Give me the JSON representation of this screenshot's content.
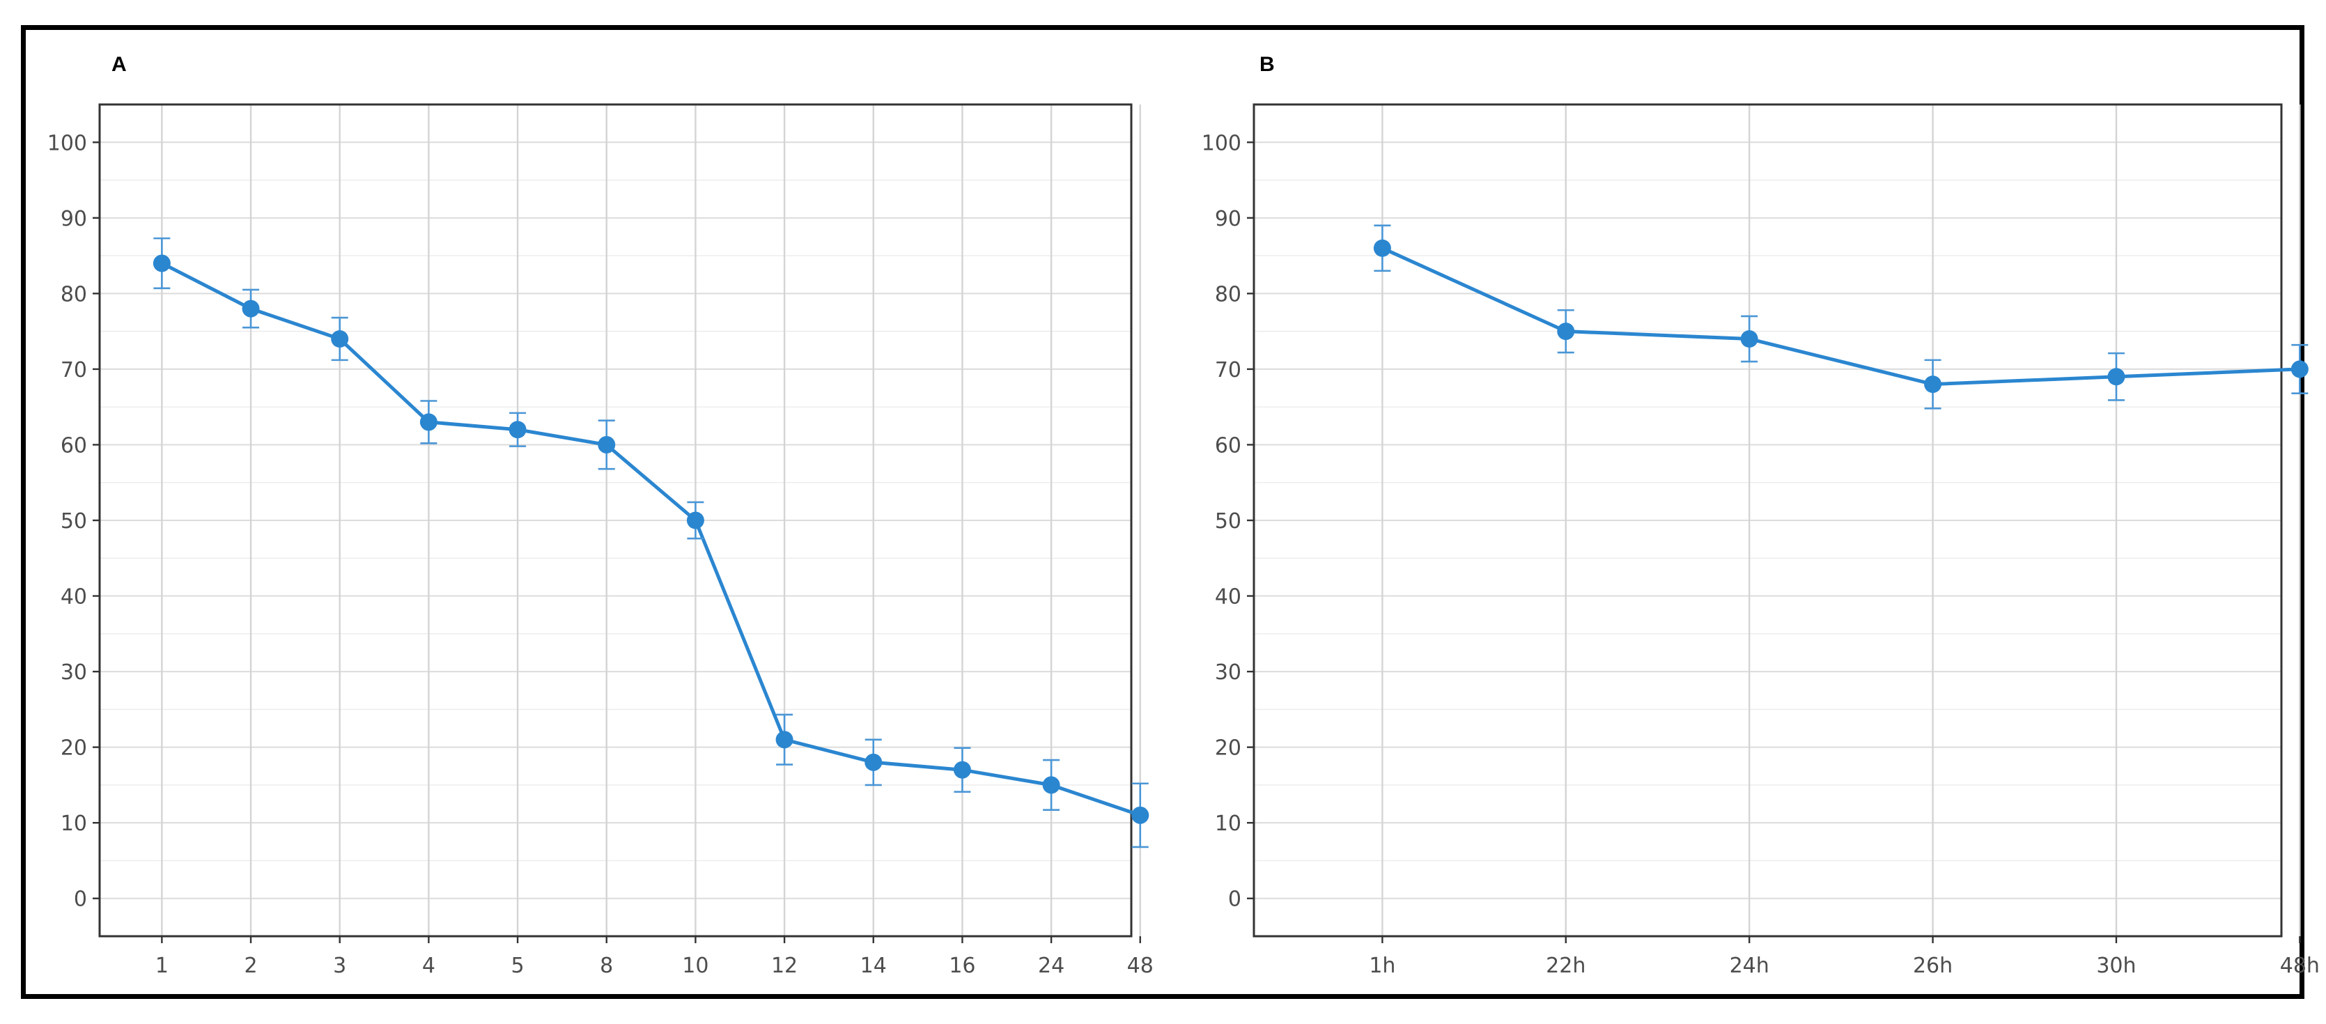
{
  "colors": {
    "series": "#2b86d0",
    "error_bar": "#4a96d6"
  },
  "chart_data": [
    {
      "type": "line",
      "panel_label": "A",
      "title": "",
      "xlabel": "",
      "ylabel": "",
      "categories": [
        "1",
        "2",
        "3",
        "4",
        "5",
        "8",
        "10",
        "12",
        "14",
        "16",
        "24",
        "48"
      ],
      "ylim": [
        -5,
        105
      ],
      "yticks": [
        0,
        10,
        20,
        30,
        40,
        50,
        60,
        70,
        80,
        90,
        100
      ],
      "grid": true,
      "series": [
        {
          "values": [
            84,
            78,
            74,
            63,
            62,
            60,
            50,
            21,
            18,
            17,
            15,
            11
          ],
          "error_upper": [
            87.3,
            80.5,
            76.8,
            65.8,
            64.2,
            63.2,
            52.4,
            24.3,
            21,
            19.9,
            18.3,
            15.2
          ],
          "error_lower": [
            80.7,
            75.5,
            71.2,
            60.2,
            59.8,
            56.8,
            47.6,
            17.7,
            15,
            14.1,
            11.7,
            6.8
          ]
        }
      ]
    },
    {
      "type": "line",
      "panel_label": "B",
      "title": "",
      "xlabel": "",
      "ylabel": "",
      "categories": [
        "1h",
        "22h",
        "24h",
        "26h",
        "30h",
        "48h"
      ],
      "ylim": [
        -5,
        105
      ],
      "yticks": [
        0,
        10,
        20,
        30,
        40,
        50,
        60,
        70,
        80,
        90,
        100
      ],
      "grid": true,
      "series": [
        {
          "values": [
            86,
            75,
            74,
            68,
            69,
            70
          ],
          "error_upper": [
            89,
            77.8,
            77,
            71.2,
            72.1,
            73.2
          ],
          "error_lower": [
            83,
            72.2,
            71,
            64.8,
            65.9,
            66.8
          ]
        }
      ]
    }
  ]
}
